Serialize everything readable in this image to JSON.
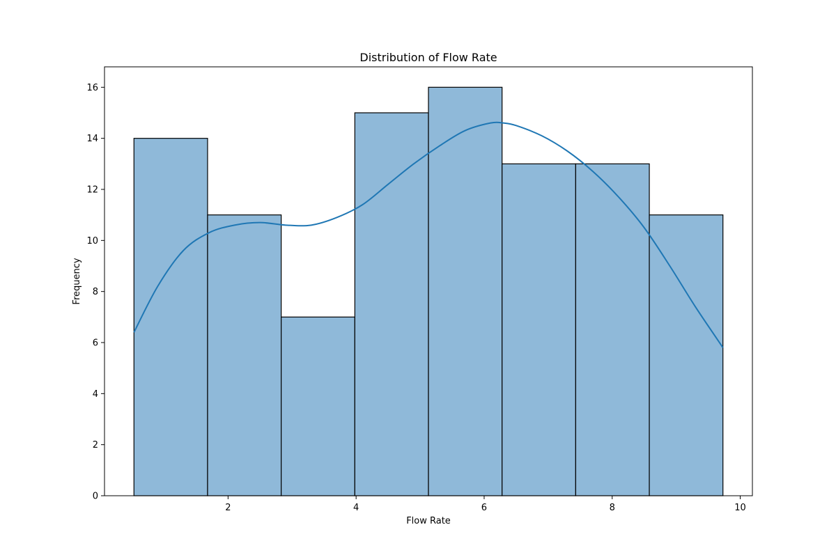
{
  "chart_data": {
    "type": "bar",
    "title": "Distribution of Flow Rate",
    "xlabel": "Flow Rate",
    "ylabel": "Frequency",
    "bin_edges": [
      0.53,
      1.68,
      2.83,
      3.98,
      5.13,
      6.28,
      7.43,
      8.58,
      9.73
    ],
    "values": [
      14,
      11,
      7,
      15,
      16,
      13,
      13,
      11
    ],
    "xlim": [
      0.07,
      10.19
    ],
    "ylim": [
      0,
      16.8
    ],
    "xticks": [
      2,
      4,
      6,
      8,
      10
    ],
    "yticks": [
      0,
      2,
      4,
      6,
      8,
      10,
      12,
      14,
      16
    ],
    "kde": {
      "x": [
        0.53,
        0.9,
        1.3,
        1.7,
        2.1,
        2.5,
        2.9,
        3.3,
        3.7,
        4.1,
        4.5,
        4.9,
        5.3,
        5.7,
        6.1,
        6.3,
        6.5,
        6.9,
        7.3,
        7.7,
        8.1,
        8.5,
        8.9,
        9.3,
        9.73
      ],
      "y": [
        6.4,
        8.2,
        9.6,
        10.3,
        10.6,
        10.7,
        10.6,
        10.6,
        10.9,
        11.4,
        12.2,
        13.0,
        13.7,
        14.3,
        14.6,
        14.6,
        14.5,
        14.1,
        13.5,
        12.7,
        11.7,
        10.5,
        9.0,
        7.4,
        5.8
      ]
    },
    "grid": false,
    "colors": {
      "bar_fill": "#8fb9d9",
      "bar_edge": "#000000",
      "kde_line": "#1f77b4"
    }
  }
}
